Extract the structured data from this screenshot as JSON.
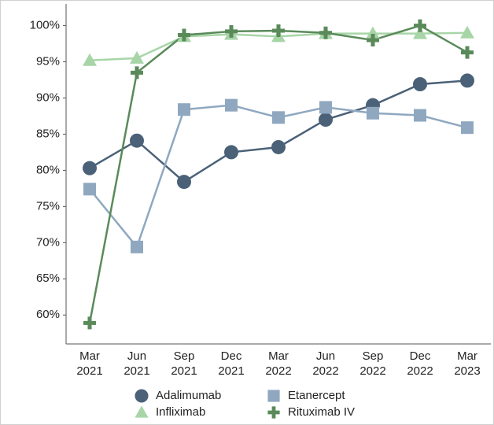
{
  "chart_data": {
    "type": "line",
    "categories": [
      "Mar 2021",
      "Jun 2021",
      "Sep 2021",
      "Dec 2021",
      "Mar 2022",
      "Jun 2022",
      "Sep 2022",
      "Dec 2022",
      "Mar 2023"
    ],
    "ylim": [
      56,
      103
    ],
    "yticks": [
      {
        "value": 60,
        "label": "60%"
      },
      {
        "value": 65,
        "label": "65%"
      },
      {
        "value": 70,
        "label": "70%"
      },
      {
        "value": 75,
        "label": "75%"
      },
      {
        "value": 80,
        "label": "80%"
      },
      {
        "value": 85,
        "label": "85%"
      },
      {
        "value": 90,
        "label": "90%"
      },
      {
        "value": 95,
        "label": "95%"
      },
      {
        "value": 100,
        "label": "100%"
      }
    ],
    "series": [
      {
        "name": "Adalimumab",
        "color": "#4a6178",
        "marker": "circle",
        "values": [
          80.3,
          84.1,
          78.4,
          82.5,
          83.2,
          87.0,
          89.0,
          91.9,
          92.4
        ]
      },
      {
        "name": "Etanercept",
        "color": "#8fa8c0",
        "marker": "square",
        "values": [
          77.4,
          69.4,
          88.4,
          89.0,
          87.3,
          88.7,
          87.9,
          87.6,
          85.9
        ]
      },
      {
        "name": "Infliximab",
        "color": "#a8d5a8",
        "marker": "triangle",
        "values": [
          95.2,
          95.5,
          98.5,
          98.8,
          98.5,
          98.9,
          98.9,
          98.9,
          99.0
        ]
      },
      {
        "name": "Rituximab IV",
        "color": "#5a8a5a",
        "marker": "plus",
        "values": [
          58.9,
          93.5,
          98.7,
          99.2,
          99.3,
          99.0,
          98.0,
          100,
          96.3
        ]
      }
    ]
  }
}
